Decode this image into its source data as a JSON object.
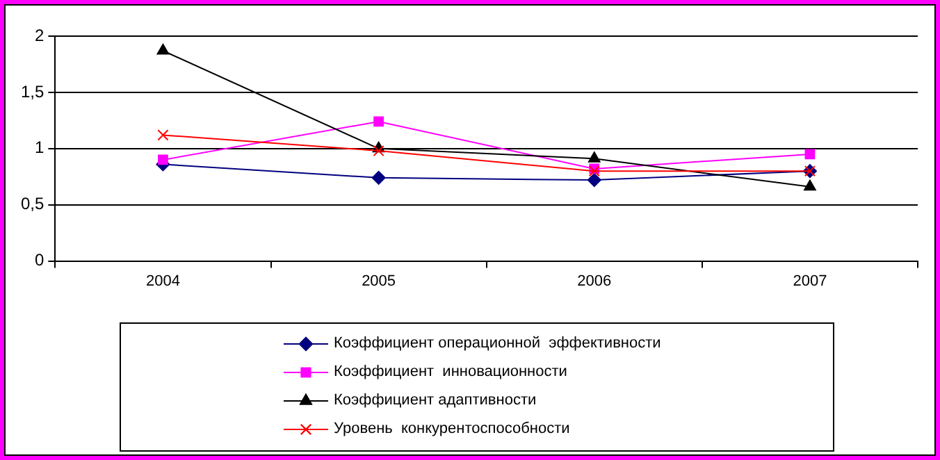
{
  "chart_data": {
    "type": "line",
    "categories": [
      "2004",
      "2005",
      "2006",
      "2007"
    ],
    "series": [
      {
        "name": "Коэффициент операционной  эффективности",
        "color": "#000080",
        "marker": "diamond",
        "values": [
          0.86,
          0.74,
          0.72,
          0.8
        ]
      },
      {
        "name": "Коэффициент  инновационности",
        "color": "#ff00ff",
        "marker": "square",
        "values": [
          0.9,
          1.24,
          0.82,
          0.95
        ]
      },
      {
        "name": "Коэффициент адаптивности",
        "color": "#000000",
        "marker": "triangle",
        "values": [
          1.87,
          1.0,
          0.91,
          0.66
        ]
      },
      {
        "name": "Уровень  конкурентоспособности",
        "color": "#ff0000",
        "marker": "cross",
        "values": [
          1.12,
          0.98,
          0.8,
          0.8
        ]
      }
    ],
    "ylim": [
      0,
      2
    ],
    "yticks": [
      0,
      {
        "value": 0.5,
        "label": "0,5"
      },
      1,
      {
        "value": 1.5,
        "label": "1,5"
      },
      2
    ],
    "grid": "y",
    "legend": "bottom",
    "line_style": "solid"
  }
}
